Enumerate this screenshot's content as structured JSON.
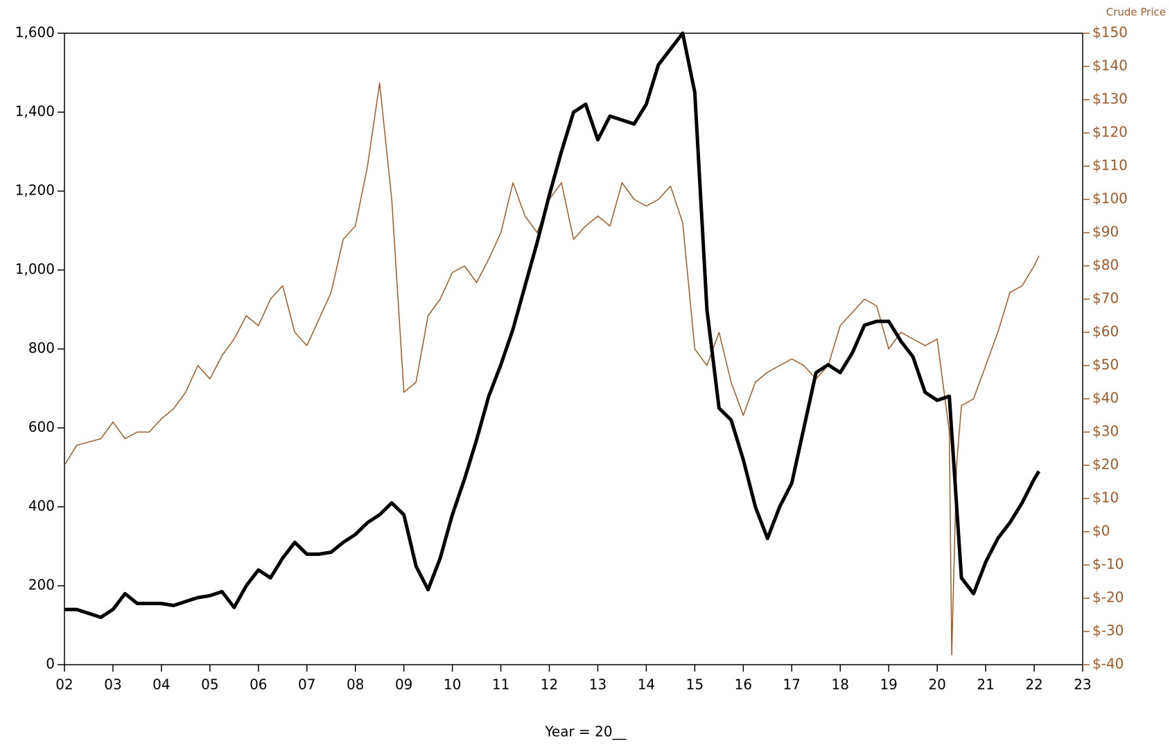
{
  "chart_data": {
    "type": "line",
    "x_label": "Year = 20__",
    "y2_label": "Crude Price",
    "xlim": [
      2,
      23
    ],
    "xticks": [
      {
        "value": 2,
        "label": "02"
      },
      {
        "value": 3,
        "label": "03"
      },
      {
        "value": 4,
        "label": "04"
      },
      {
        "value": 5,
        "label": "05"
      },
      {
        "value": 6,
        "label": "06"
      },
      {
        "value": 7,
        "label": "07"
      },
      {
        "value": 8,
        "label": "08"
      },
      {
        "value": 9,
        "label": "09"
      },
      10,
      11,
      12,
      13,
      14,
      15,
      16,
      17,
      18,
      19,
      20,
      21,
      22,
      23
    ],
    "ylim": [
      0,
      1600
    ],
    "yticks": [
      0,
      200,
      400,
      600,
      800,
      {
        "value": 1000,
        "label": "1,000"
      },
      {
        "value": 1200,
        "label": "1,200"
      },
      {
        "value": 1400,
        "label": "1,400"
      },
      {
        "value": 1600,
        "label": "1,600"
      }
    ],
    "y2lim": [
      -40,
      150
    ],
    "y2ticks": [
      {
        "value": -40,
        "label": "$-40"
      },
      {
        "value": -30,
        "label": "$-30"
      },
      {
        "value": -20,
        "label": "$-20"
      },
      {
        "value": -10,
        "label": "$-10"
      },
      {
        "value": 0,
        "label": "$0"
      },
      {
        "value": 10,
        "label": "$10"
      },
      {
        "value": 20,
        "label": "$20"
      },
      {
        "value": 30,
        "label": "$30"
      },
      {
        "value": 40,
        "label": "$40"
      },
      {
        "value": 50,
        "label": "$50"
      },
      {
        "value": 60,
        "label": "$60"
      },
      {
        "value": 70,
        "label": "$70"
      },
      {
        "value": 80,
        "label": "$80"
      },
      {
        "value": 90,
        "label": "$90"
      },
      {
        "value": 100,
        "label": "$100"
      },
      {
        "value": 110,
        "label": "$110"
      },
      {
        "value": 120,
        "label": "$120"
      },
      {
        "value": 130,
        "label": "$130"
      },
      {
        "value": 140,
        "label": "$140"
      },
      {
        "value": 150,
        "label": "$150"
      }
    ],
    "y2_color": "#9c5a2a",
    "series": [
      {
        "color": "#9c5a2a",
        "axis": "y2",
        "width": 1.5,
        "x": [
          2.0,
          2.25,
          2.5,
          2.75,
          3.0,
          3.25,
          3.5,
          3.75,
          4.0,
          4.25,
          4.5,
          4.75,
          5.0,
          5.25,
          5.5,
          5.75,
          6.0,
          6.25,
          6.5,
          6.75,
          7.0,
          7.25,
          7.5,
          7.75,
          8.0,
          8.25,
          8.5,
          8.75,
          9.0,
          9.25,
          9.5,
          9.75,
          10.0,
          10.25,
          10.5,
          10.75,
          11.0,
          11.25,
          11.5,
          11.75,
          12.0,
          12.25,
          12.5,
          12.75,
          13.0,
          13.25,
          13.5,
          13.75,
          14.0,
          14.25,
          14.5,
          14.75,
          15.0,
          15.25,
          15.5,
          15.75,
          16.0,
          16.25,
          16.5,
          16.75,
          17.0,
          17.25,
          17.5,
          17.75,
          18.0,
          18.25,
          18.5,
          18.75,
          19.0,
          19.25,
          19.5,
          19.75,
          20.0,
          20.25,
          20.3,
          20.4,
          20.5,
          20.75,
          21.0,
          21.25,
          21.5,
          21.75,
          22.0,
          22.1
        ],
        "values": [
          20,
          26,
          27,
          28,
          33,
          28,
          30,
          30,
          34,
          37,
          42,
          50,
          46,
          53,
          58,
          65,
          62,
          70,
          74,
          60,
          56,
          64,
          72,
          88,
          92,
          110,
          135,
          100,
          42,
          45,
          65,
          70,
          78,
          80,
          75,
          82,
          90,
          105,
          95,
          90,
          100,
          105,
          88,
          92,
          95,
          92,
          105,
          100,
          98,
          100,
          104,
          93,
          55,
          50,
          60,
          45,
          35,
          45,
          48,
          50,
          52,
          50,
          46,
          50,
          62,
          66,
          70,
          68,
          55,
          60,
          58,
          56,
          58,
          30,
          -37,
          20,
          38,
          40,
          50,
          60,
          72,
          74,
          80,
          83
        ]
      },
      {
        "color": "#000000",
        "width": 5,
        "x": [
          2.0,
          2.25,
          2.5,
          2.75,
          3.0,
          3.25,
          3.5,
          3.75,
          4.0,
          4.25,
          4.5,
          4.75,
          5.0,
          5.25,
          5.5,
          5.75,
          6.0,
          6.25,
          6.5,
          6.75,
          7.0,
          7.25,
          7.5,
          7.75,
          8.0,
          8.25,
          8.5,
          8.75,
          9.0,
          9.25,
          9.5,
          9.75,
          10.0,
          10.25,
          10.5,
          10.75,
          11.0,
          11.25,
          11.5,
          11.75,
          12.0,
          12.25,
          12.5,
          12.75,
          13.0,
          13.25,
          13.5,
          13.75,
          14.0,
          14.25,
          14.5,
          14.75,
          15.0,
          15.25,
          15.5,
          15.75,
          16.0,
          16.25,
          16.5,
          16.75,
          17.0,
          17.25,
          17.5,
          17.75,
          18.0,
          18.25,
          18.5,
          18.75,
          19.0,
          19.25,
          19.5,
          19.75,
          20.0,
          20.25,
          20.5,
          20.75,
          21.0,
          21.25,
          21.5,
          21.75,
          22.0,
          22.1
        ],
        "values": [
          140,
          140,
          130,
          120,
          140,
          180,
          155,
          155,
          155,
          150,
          160,
          170,
          175,
          185,
          145,
          200,
          240,
          220,
          270,
          310,
          280,
          280,
          285,
          310,
          330,
          360,
          380,
          410,
          380,
          250,
          190,
          270,
          380,
          470,
          570,
          680,
          760,
          850,
          960,
          1070,
          1190,
          1300,
          1400,
          1420,
          1330,
          1390,
          1380,
          1370,
          1420,
          1520,
          1560,
          1600,
          1450,
          900,
          650,
          620,
          520,
          400,
          320,
          400,
          460,
          600,
          740,
          760,
          740,
          790,
          860,
          870,
          870,
          820,
          780,
          690,
          670,
          680,
          220,
          180,
          260,
          320,
          360,
          410,
          470,
          490
        ]
      }
    ]
  }
}
